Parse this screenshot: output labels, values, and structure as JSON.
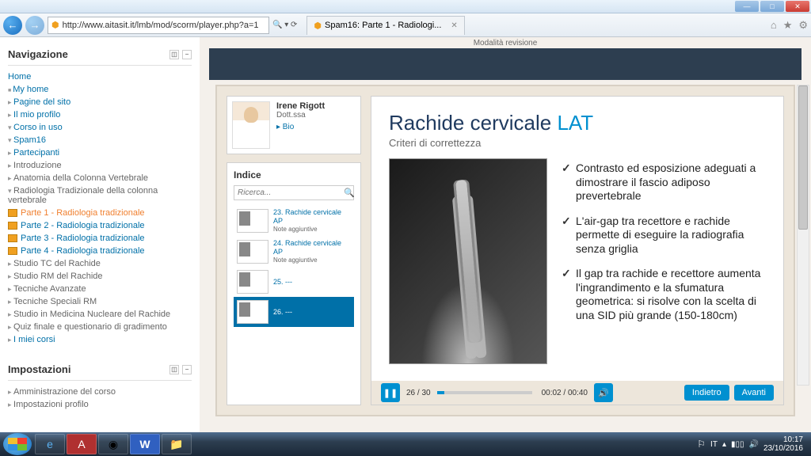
{
  "window": {
    "url": "http://www.aitasit.it/lmb/mod/scorm/player.php?a=1",
    "tabTitle": "Spam16: Parte 1 - Radiologi..."
  },
  "nav": {
    "title": "Navigazione",
    "home": "Home",
    "items": [
      {
        "label": "My home",
        "cls": "ind1 dot"
      },
      {
        "label": "Pagine del sito",
        "cls": "ind1 bullet"
      },
      {
        "label": "Il mio profilo",
        "cls": "ind1 bullet"
      },
      {
        "label": "Corso in uso",
        "cls": "ind1 bullet-open"
      },
      {
        "label": "Spam16",
        "cls": "ind2 bullet-open"
      },
      {
        "label": "Partecipanti",
        "cls": "ind3 bullet"
      },
      {
        "label": "Introduzione",
        "cls": "ind3 bullet grey"
      },
      {
        "label": "Anatomia della Colonna Vertebrale",
        "cls": "ind3 bullet grey"
      },
      {
        "label": "Radiologia Tradizionale della colonna vertebrale",
        "cls": "ind3 bullet-open grey"
      },
      {
        "label": "Parte 1 - Radiologia tradizionale",
        "cls": "ind4",
        "icon": true,
        "current": true
      },
      {
        "label": "Parte 2 - Radiologia tradizionale",
        "cls": "ind4",
        "icon": true
      },
      {
        "label": "Parte 3 - Radiologia tradizionale",
        "cls": "ind4",
        "icon": true
      },
      {
        "label": "Parte 4 - Radiologia tradizionale",
        "cls": "ind4",
        "icon": true
      },
      {
        "label": "Studio TC del Rachide",
        "cls": "ind3 bullet grey"
      },
      {
        "label": "Studio RM del Rachide",
        "cls": "ind3 bullet grey"
      },
      {
        "label": "Tecniche Avanzate",
        "cls": "ind3 bullet grey"
      },
      {
        "label": "Tecniche Speciali RM",
        "cls": "ind3 bullet grey"
      },
      {
        "label": "Studio in Medicina Nucleare del Rachide",
        "cls": "ind3 bullet grey"
      },
      {
        "label": "Quiz finale e questionario di gradimento",
        "cls": "ind3 bullet grey"
      },
      {
        "label": "I miei corsi",
        "cls": "ind1 bullet"
      }
    ]
  },
  "settings": {
    "title": "Impostazioni",
    "items": [
      {
        "label": "Amministrazione del corso",
        "cls": "ind1 bullet"
      },
      {
        "label": "Impostazioni profilo",
        "cls": "ind1 bullet"
      }
    ]
  },
  "modeLabel": "Modalità revisione",
  "profile": {
    "name": "Irene Rigott",
    "title": "Dott.ssa",
    "bio": "▸ Bio"
  },
  "indice": {
    "title": "Indice",
    "searchPlaceholder": "Ricerca...",
    "items": [
      {
        "num": "23.",
        "title": "Rachide cervicale AP",
        "sub": "Note aggiuntive"
      },
      {
        "num": "24.",
        "title": "Rachide cervicale AP",
        "sub": "Note aggiuntive"
      },
      {
        "num": "25.",
        "title": "---",
        "sub": ""
      },
      {
        "num": "26.",
        "title": "---",
        "sub": "",
        "active": true
      }
    ]
  },
  "slide": {
    "title": "Rachide cervicale ",
    "titleAccent": "LAT",
    "subtitle": "Criteri di correttezza",
    "bullets": [
      "Contrasto ed esposizione adeguati a dimostrare il fascio adiposo prevertebrale",
      "L'air-gap tra recettore e rachide permette di eseguire la radiografia senza griglia",
      "Il gap tra rachide e recettore aumenta l'ingrandimento e la sfumatura geometrica: si risolve con la scelta di una SID più grande (150-180cm)"
    ]
  },
  "player": {
    "counter": "26 / 30",
    "time": "00:02 / 00:40",
    "back": "Indietro",
    "fwd": "Avanti"
  },
  "taskbar": {
    "lang": "IT",
    "time": "10:17",
    "date": "23/10/2016"
  }
}
